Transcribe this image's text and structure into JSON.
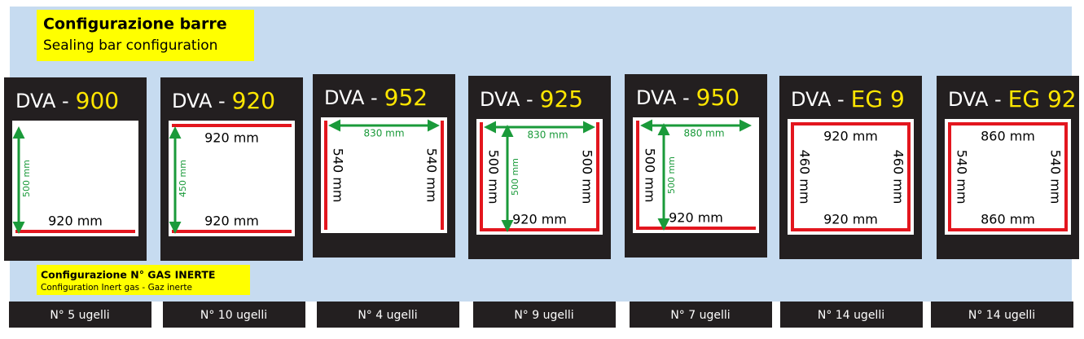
{
  "header": {
    "title": "Configurazione barre",
    "subtitle": "Sealing bar configuration"
  },
  "panels": [
    {
      "prefix": "DVA -",
      "model": "900",
      "height_arrow": "500 mm",
      "bottom": "920 mm",
      "nozzles": "N° 5 ugelli"
    },
    {
      "prefix": "DVA -",
      "model": "920",
      "height_arrow": "450 mm",
      "top": "920 mm",
      "bottom": "920 mm",
      "nozzles": "N° 10 ugelli"
    },
    {
      "prefix": "DVA -",
      "model": "952",
      "width_arrow": "830 mm",
      "left": "540 mm",
      "right": "540 mm",
      "nozzles": "N° 4 ugelli"
    },
    {
      "prefix": "DVA -",
      "model": "925",
      "width_arrow": "830 mm",
      "height_arrow": "500 mm",
      "left": "500 mm",
      "right": "500 mm",
      "bottom": "920 mm",
      "nozzles": "N° 9 ugelli"
    },
    {
      "prefix": "DVA -",
      "model": "950",
      "width_arrow": "880 mm",
      "height_arrow": "500 mm",
      "left": "500 mm",
      "bottom": "920 mm",
      "nozzles": "N° 7 ugelli"
    },
    {
      "prefix": "DVA -",
      "model": "EG 9",
      "top": "920 mm",
      "left": "460 mm",
      "right": "460 mm",
      "bottom": "920 mm",
      "nozzles": "N° 14 ugelli"
    },
    {
      "prefix": "DVA -",
      "model": "EG 92",
      "top": "860 mm",
      "left": "540 mm",
      "right": "540 mm",
      "bottom": "860 mm",
      "nozzles": "N° 14 ugelli"
    }
  ],
  "gas": {
    "title": "Configurazione N° GAS INERTE",
    "subtitle": "Configuration Inert gas - Gaz inerte"
  }
}
